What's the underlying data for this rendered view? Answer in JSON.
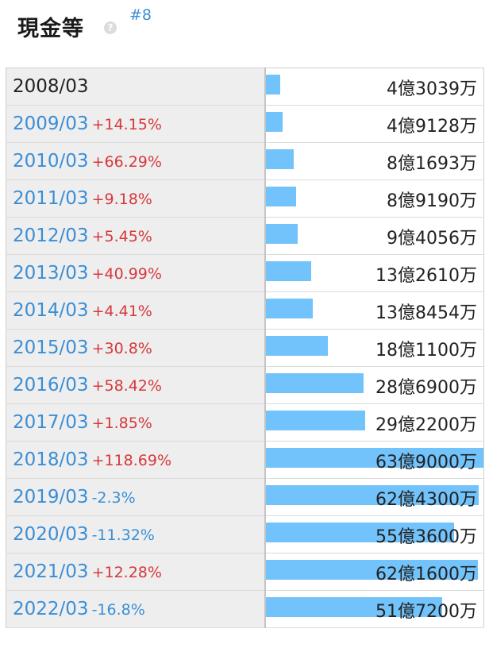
{
  "header": {
    "title": "現金等",
    "help_icon": "?",
    "rank": "#8"
  },
  "colors": {
    "bar": "#72c3fb",
    "positive": "#d6383b",
    "negative": "#3a8ed6",
    "link": "#3a8ed6"
  },
  "chart_data": {
    "type": "bar",
    "orientation": "horizontal",
    "unit": "円",
    "categories": [
      "2008/03",
      "2009/03",
      "2010/03",
      "2011/03",
      "2012/03",
      "2013/03",
      "2014/03",
      "2015/03",
      "2016/03",
      "2017/03",
      "2018/03",
      "2019/03",
      "2020/03",
      "2021/03",
      "2022/03"
    ],
    "changes": [
      "",
      "+14.15%",
      "+66.29%",
      "+9.18%",
      "+5.45%",
      "+40.99%",
      "+4.41%",
      "+30.8%",
      "+58.42%",
      "+1.85%",
      "+118.69%",
      "-2.3%",
      "-11.32%",
      "+12.28%",
      "-16.8%"
    ],
    "value_labels": [
      "4億3039万",
      "4億9128万",
      "8億1693万",
      "8億9190万",
      "9億4056万",
      "13億2610万",
      "13億8454万",
      "18億1100万",
      "28億6900万",
      "29億2200万",
      "63億9000万",
      "62億4300万",
      "55億3600万",
      "62億1600万",
      "51億7200万"
    ],
    "values": [
      430390000,
      491280000,
      816930000,
      891900000,
      940560000,
      1326100000,
      1384540000,
      1811000000,
      2869000000,
      2922000000,
      6390000000,
      6243000000,
      5536000000,
      6216000000,
      5172000000
    ],
    "max_value": 6390000000
  }
}
